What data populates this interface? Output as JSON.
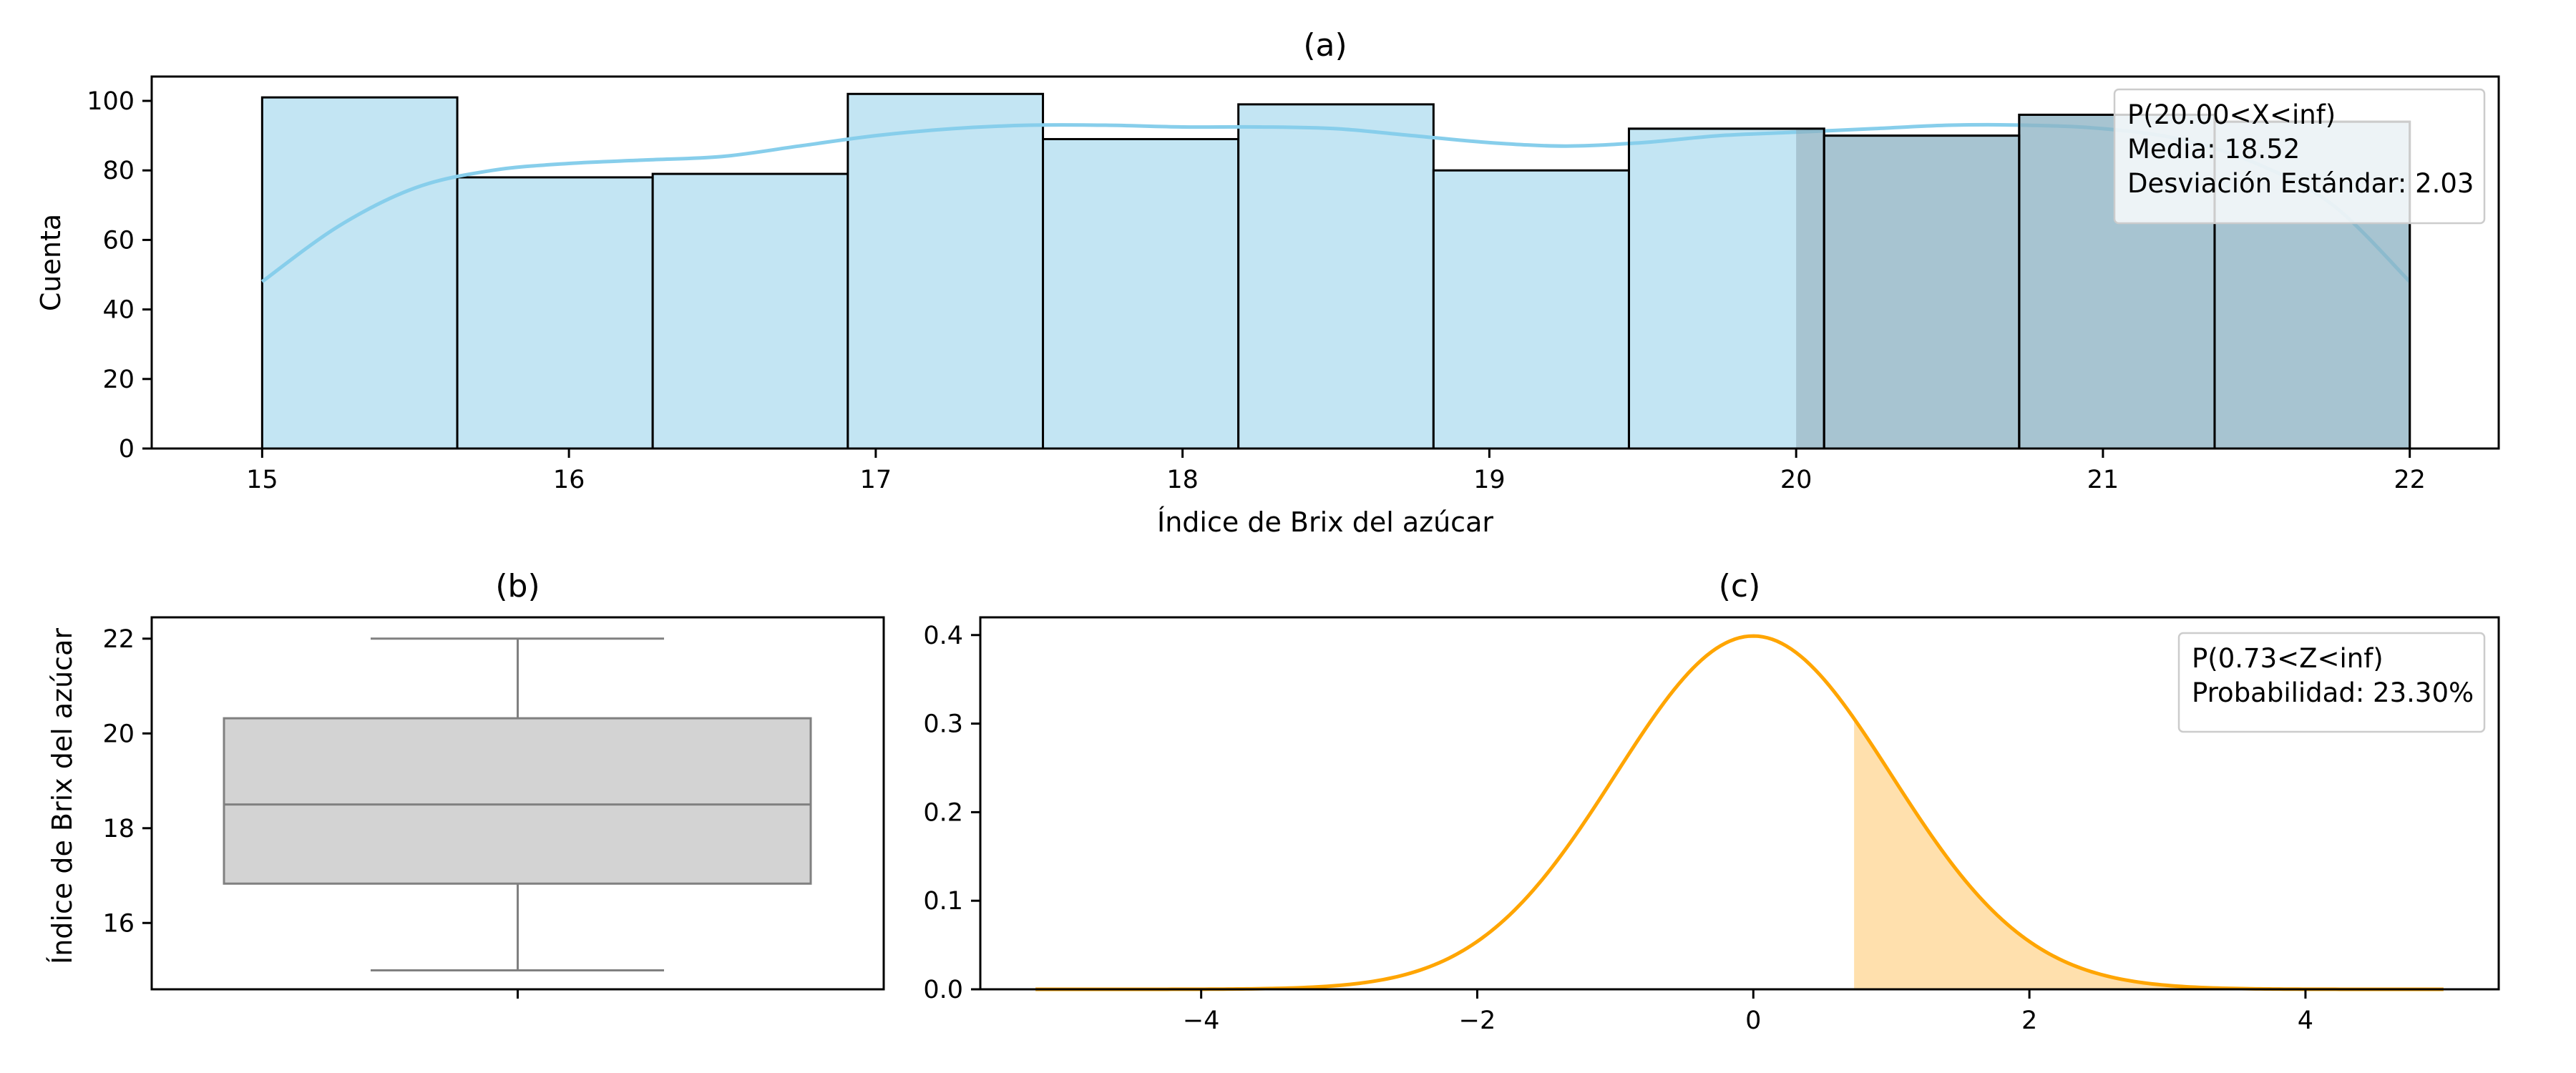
{
  "chart_data": [
    {
      "id": "a",
      "type": "bar",
      "title": "(a)",
      "xlabel": "Índice de Brix del azúcar",
      "ylabel": "Cuenta",
      "xlim": [
        14.64,
        22.29
      ],
      "ylim": [
        0,
        107
      ],
      "xticks": [
        15,
        16,
        17,
        18,
        19,
        20,
        21,
        22
      ],
      "yticks": [
        0,
        20,
        40,
        60,
        80,
        100
      ],
      "bin_edges": [
        15.0,
        15.636,
        16.273,
        16.909,
        17.545,
        18.182,
        18.818,
        19.455,
        20.091,
        20.727,
        21.364,
        22.0
      ],
      "values": [
        101,
        78,
        79,
        102,
        89,
        99,
        80,
        92,
        90,
        96,
        94
      ],
      "kde": {
        "x": [
          15.0,
          15.25,
          15.5,
          15.75,
          16.0,
          16.25,
          16.5,
          16.75,
          17.0,
          17.25,
          17.5,
          17.75,
          18.0,
          18.25,
          18.5,
          18.75,
          19.0,
          19.25,
          19.5,
          19.75,
          20.0,
          20.25,
          20.5,
          20.75,
          21.0,
          21.25,
          21.5,
          21.75,
          22.0
        ],
        "y": [
          48,
          64,
          75,
          80,
          82,
          83,
          84,
          87,
          90,
          92,
          93,
          93,
          92.5,
          92.5,
          92,
          90,
          88,
          87,
          88,
          90,
          91,
          92,
          93,
          93,
          92,
          89,
          82,
          70,
          48
        ]
      },
      "shaded_region": [
        20.0,
        22.0
      ],
      "legend": {
        "loc": "upper right",
        "lines": [
          "P(20.00<X<inf)",
          "Media: 18.52",
          "Desviación Estándar: 2.03"
        ]
      },
      "colors": {
        "bar": "#c3e5f3",
        "kde": "#87ceeb",
        "shade": "#8fa9b4"
      }
    },
    {
      "id": "b",
      "type": "box",
      "title": "(b)",
      "ylabel": "Índice de Brix del azúcar",
      "ylim": [
        14.6,
        22.45
      ],
      "yticks": [
        16,
        18,
        20,
        22
      ],
      "box": {
        "whislo": 15.0,
        "q1": 16.83,
        "median": 18.5,
        "q3": 20.32,
        "whishi": 22.0
      },
      "colors": {
        "box": "#d3d3d3",
        "line": "#808080"
      }
    },
    {
      "id": "c",
      "type": "line",
      "title": "(c)",
      "xlim": [
        -5.6,
        5.4
      ],
      "ylim": [
        0,
        0.42
      ],
      "xticks": [
        -4,
        -2,
        0,
        2,
        4
      ],
      "yticks": [
        0.0,
        0.1,
        0.2,
        0.3,
        0.4
      ],
      "shade_from": 0.73,
      "legend": {
        "loc": "upper right",
        "lines": [
          "P(0.73<Z<inf)",
          "Probabilidad:  23.30%"
        ]
      },
      "colors": {
        "line": "#ffa500",
        "fill": "#ffe0ad"
      }
    }
  ]
}
